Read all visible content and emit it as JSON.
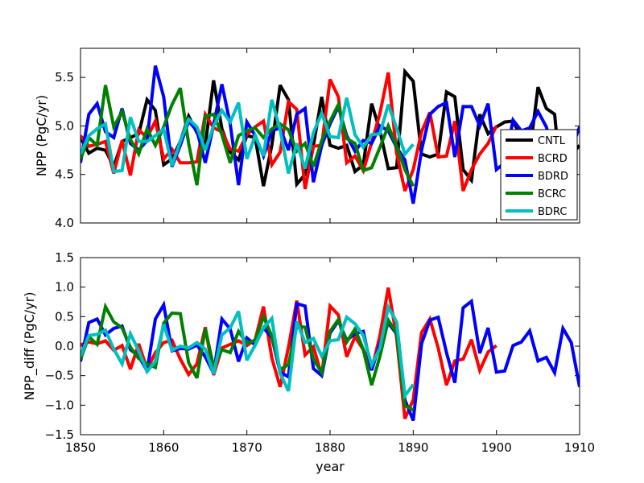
{
  "chart_data": [
    {
      "type": "line",
      "title": "",
      "xlabel": "",
      "ylabel": "NPP (PgC/yr)",
      "xlim": [
        1850,
        1910
      ],
      "ylim": [
        4.0,
        5.8
      ],
      "yticks": [
        "4.0",
        "4.5",
        "5.0",
        "5.5"
      ],
      "show_xticklabels": false,
      "legend_position": "lower-right",
      "series": [
        {
          "name": "CNTL",
          "color": "#000000",
          "x_start": 1850,
          "values": [
            4.88,
            4.72,
            4.77,
            4.75,
            4.58,
            4.84,
            4.88,
            4.92,
            5.27,
            5.16,
            4.6,
            4.66,
            4.84,
            5.1,
            4.93,
            4.8,
            5.47,
            4.97,
            4.73,
            4.65,
            4.9,
            4.88,
            4.38,
            4.8,
            5.42,
            5.27,
            4.4,
            4.5,
            4.8,
            5.3,
            4.8,
            4.77,
            4.8,
            4.53,
            4.6,
            5.23,
            4.95,
            4.56,
            4.57,
            5.56,
            5.46,
            4.71,
            4.68,
            4.71,
            5.35,
            5.3,
            4.55,
            4.44,
            5.12,
            4.92,
            4.99,
            5.04,
            5.05,
            4.88,
            4.72,
            5.4,
            5.18,
            5.12,
            4.22,
            4.7,
            4.8
          ]
        },
        {
          "name": "BCRD",
          "color": "#ff0000",
          "x_start": 1850,
          "values": [
            4.9,
            4.79,
            4.81,
            4.84,
            4.51,
            4.85,
            4.49,
            4.96,
            4.88,
            5.05,
            4.66,
            4.76,
            4.62,
            4.62,
            4.63,
            5.12,
            4.98,
            4.94,
            4.76,
            4.74,
            4.91,
            4.99,
            5.05,
            4.6,
            4.73,
            5.25,
            5.17,
            4.35,
            4.79,
            4.8,
            5.48,
            5.3,
            4.62,
            4.69,
            4.54,
            4.83,
            5.13,
            5.55,
            4.72,
            4.33,
            4.55,
            4.94,
            5.14,
            4.68,
            4.69,
            5.05,
            4.33,
            4.55,
            4.71,
            4.82,
            5.0
          ]
        },
        {
          "name": "BDRD",
          "color": "#0000ff",
          "x_start": 1850,
          "values": [
            4.62,
            5.12,
            5.23,
            4.94,
            4.88,
            5.18,
            4.82,
            4.75,
            4.85,
            5.62,
            5.3,
            4.58,
            4.8,
            5.05,
            4.95,
            4.62,
            5.01,
            5.43,
            5.02,
            4.39,
            5.04,
            4.9,
            4.69,
            4.95,
            4.98,
            4.75,
            5.12,
            5.18,
            4.42,
            4.8,
            5.02,
            5.2,
            4.9,
            4.74,
            4.85,
            4.82,
            5.0,
            4.95,
            4.78,
            4.65,
            4.2,
            4.75,
            5.12,
            5.2,
            5.24,
            4.68,
            5.2,
            5.2,
            5.0,
            5.23,
            4.55,
            4.62,
            5.06,
            4.95,
            4.98,
            5.15,
            4.99,
            4.67,
            4.52,
            4.76,
            4.99
          ]
        },
        {
          "name": "BCRC",
          "color": "#008000",
          "x_start": 1850,
          "values": [
            4.66,
            4.88,
            4.8,
            5.42,
            4.99,
            5.15,
            4.86,
            4.71,
            4.97,
            4.8,
            4.99,
            5.22,
            5.39,
            4.82,
            4.39,
            5.1,
            5.12,
            4.91,
            4.62,
            4.9,
            4.95,
            4.98,
            4.88,
            4.97,
            5.02,
            4.96,
            4.74,
            4.82,
            4.58,
            4.85,
            5.05,
            5.22,
            4.87,
            4.82,
            4.54,
            4.57,
            4.78,
            5.0,
            4.79,
            4.55,
            4.38
          ]
        },
        {
          "name": "BDRC",
          "color": "#00bfbf",
          "x_start": 1850,
          "values": [
            4.71,
            4.9,
            4.97,
            5.02,
            4.53,
            4.54,
            5.09,
            4.84,
            4.84,
            4.9,
            4.97,
            4.59,
            4.84,
            5.07,
            4.99,
            4.75,
            5.0,
            5.16,
            5.04,
            5.24,
            4.66,
            4.9,
            4.69,
            5.27,
            4.96,
            4.51,
            4.82,
            4.56,
            4.93,
            5.13,
            4.89,
            4.88,
            5.29,
            4.91,
            4.78,
            4.91,
            4.92,
            5.22,
            4.98,
            4.71,
            4.81
          ]
        }
      ]
    },
    {
      "type": "line",
      "title": "",
      "xlabel": "year",
      "ylabel": "NPP_diff (PgC/yr)",
      "xlim": [
        1850,
        1910
      ],
      "ylim": [
        -1.5,
        1.5
      ],
      "yticks": [
        "−1.5",
        "−1.0",
        "−0.5",
        "0.0",
        "0.5",
        "1.0",
        "1.5"
      ],
      "xticks": [
        "1850",
        "1860",
        "1870",
        "1880",
        "1890",
        "1900",
        "1910"
      ],
      "series": [
        {
          "name": "BCRD",
          "color": "#ff0000",
          "x_start": 1850,
          "values": [
            0.02,
            0.07,
            0.04,
            0.09,
            -0.07,
            0.01,
            -0.39,
            0.04,
            -0.39,
            -0.11,
            0.06,
            0.1,
            -0.22,
            -0.48,
            -0.3,
            0.32,
            -0.49,
            -0.03,
            0.03,
            0.09,
            0.01,
            0.11,
            0.67,
            -0.2,
            -0.69,
            -0.02,
            0.77,
            -0.15,
            -0.01,
            -0.5,
            0.68,
            0.53,
            -0.18,
            0.16,
            -0.06,
            -0.4,
            0.18,
            0.99,
            0.15,
            -1.23,
            -0.91,
            0.23,
            0.46,
            -0.03,
            -0.66,
            -0.25,
            -0.22,
            0.11,
            -0.41,
            -0.1,
            0.01
          ]
        },
        {
          "name": "BDRD",
          "color": "#0000ff",
          "x_start": 1850,
          "values": [
            -0.26,
            0.4,
            0.46,
            0.19,
            0.3,
            0.34,
            -0.06,
            -0.17,
            -0.42,
            0.46,
            0.7,
            -0.08,
            -0.04,
            -0.05,
            0.02,
            -0.18,
            -0.46,
            0.46,
            0.29,
            -0.26,
            0.14,
            0.02,
            0.31,
            0.15,
            -0.44,
            -0.52,
            0.72,
            0.68,
            -0.38,
            -0.5,
            0.22,
            0.43,
            0.1,
            0.21,
            0.25,
            -0.41,
            0.05,
            0.39,
            0.21,
            -0.91,
            -1.26,
            0.04,
            0.44,
            0.49,
            -0.11,
            -0.62,
            0.65,
            0.76,
            -0.12,
            0.31,
            -0.44,
            -0.42,
            0.01,
            0.07,
            0.26,
            -0.25,
            -0.19,
            -0.45,
            0.3,
            0.06,
            -0.69
          ]
        },
        {
          "name": "BCRC",
          "color": "#008000",
          "x_start": 1850,
          "values": [
            -0.22,
            0.16,
            0.03,
            0.67,
            0.41,
            0.31,
            -0.02,
            -0.21,
            -0.3,
            -0.36,
            0.39,
            0.56,
            0.55,
            -0.28,
            -0.54,
            0.3,
            -0.35,
            -0.06,
            -0.11,
            0.25,
            0.05,
            0.1,
            0.5,
            0.17,
            -0.4,
            -0.31,
            0.34,
            0.32,
            -0.22,
            -0.45,
            0.25,
            0.45,
            0.07,
            0.29,
            -0.06,
            -0.66,
            -0.17,
            0.44,
            0.22,
            -1.01,
            -1.08
          ]
        },
        {
          "name": "BDRC",
          "color": "#00bfbf",
          "x_start": 1850,
          "values": [
            -0.17,
            0.18,
            0.2,
            0.27,
            -0.05,
            -0.3,
            0.21,
            -0.08,
            -0.43,
            -0.26,
            0.37,
            -0.07,
            0.0,
            -0.03,
            0.06,
            -0.05,
            -0.47,
            0.19,
            0.31,
            0.59,
            -0.24,
            0.02,
            0.31,
            0.47,
            -0.46,
            -0.76,
            0.42,
            0.06,
            0.13,
            -0.17,
            0.09,
            0.11,
            0.49,
            0.38,
            0.18,
            -0.32,
            -0.03,
            0.66,
            0.41,
            -0.84,
            -0.65
          ]
        }
      ]
    }
  ]
}
